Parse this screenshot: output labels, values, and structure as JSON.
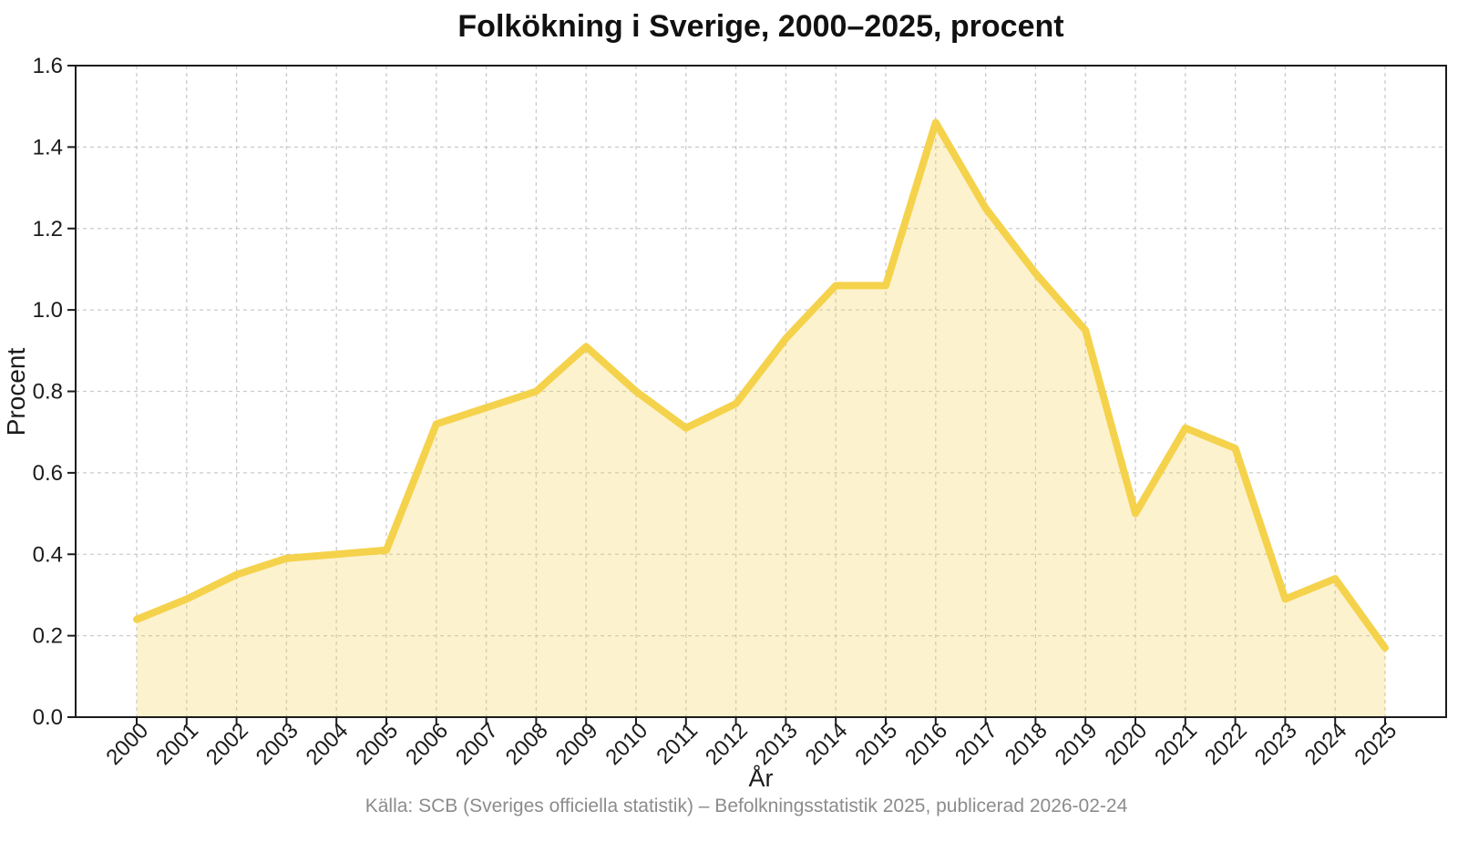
{
  "chart_data": {
    "type": "area",
    "title": "Folkökning i Sverige, 2000–2025, procent",
    "xlabel": "År",
    "ylabel": "Procent",
    "source_note": "Källa: SCB (Sveriges officiella statistik) – Befolkningsstatistik 2025, publicerad 2026-02-24",
    "categories": [
      "2000",
      "2001",
      "2002",
      "2003",
      "2004",
      "2005",
      "2006",
      "2007",
      "2008",
      "2009",
      "2010",
      "2011",
      "2012",
      "2013",
      "2014",
      "2015",
      "2016",
      "2017",
      "2018",
      "2019",
      "2020",
      "2021",
      "2022",
      "2023",
      "2024",
      "2025"
    ],
    "values": [
      0.24,
      0.29,
      0.35,
      0.39,
      0.4,
      0.41,
      0.72,
      0.76,
      0.8,
      0.91,
      0.8,
      0.71,
      0.77,
      0.93,
      1.06,
      1.06,
      1.46,
      1.25,
      1.09,
      0.95,
      0.5,
      0.71,
      0.66,
      0.29,
      0.34,
      0.17
    ],
    "ylim": [
      0,
      1.6
    ],
    "ytick_labels": [
      "0.0",
      "0.2",
      "0.4",
      "0.6",
      "0.8",
      "1.0",
      "1.2",
      "1.4",
      "1.6"
    ],
    "grid": "dashed-both-axes",
    "legend": "none",
    "colors": {
      "line": "#F5D24B",
      "fill": "#F5D24B",
      "fill_opacity": 0.28,
      "grid": "#CBCBCB",
      "spine": "#1C1C1C",
      "text": "#1C1C1C",
      "muted": "#8C8C8C",
      "background": "#FFFFFF"
    }
  }
}
